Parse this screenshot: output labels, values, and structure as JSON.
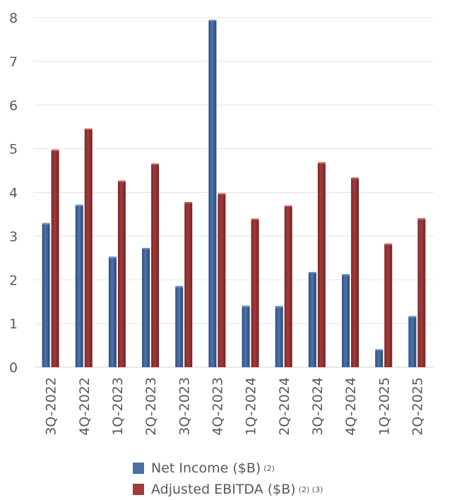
{
  "chart_data": {
    "type": "bar",
    "categories": [
      "3Q-2022",
      "4Q-2022",
      "1Q-2023",
      "2Q-2023",
      "3Q-2023",
      "4Q-2023",
      "1Q-2024",
      "2Q-2024",
      "3Q-2024",
      "4Q-2024",
      "1Q-2025",
      "2Q-2025"
    ],
    "series": [
      {
        "name": "Net Income ($B)",
        "note": "(2)",
        "color": "#4a6fa5",
        "values": [
          3.27,
          3.69,
          2.5,
          2.7,
          1.83,
          7.92,
          1.38,
          1.37,
          2.15,
          2.1,
          0.38,
          1.14
        ]
      },
      {
        "name": "Adjusted EBITDA ($B)",
        "note": "(2) (3)",
        "color": "#a23b3b",
        "values": [
          4.95,
          5.43,
          4.24,
          4.63,
          3.75,
          3.95,
          3.37,
          3.67,
          4.66,
          4.31,
          2.8,
          3.38
        ]
      }
    ],
    "title": "",
    "xlabel": "",
    "ylabel": "",
    "ylim": [
      0,
      8
    ],
    "yticks": [
      0,
      1,
      2,
      3,
      4,
      5,
      6,
      7,
      8
    ],
    "grid": true,
    "legend_position": "bottom"
  }
}
